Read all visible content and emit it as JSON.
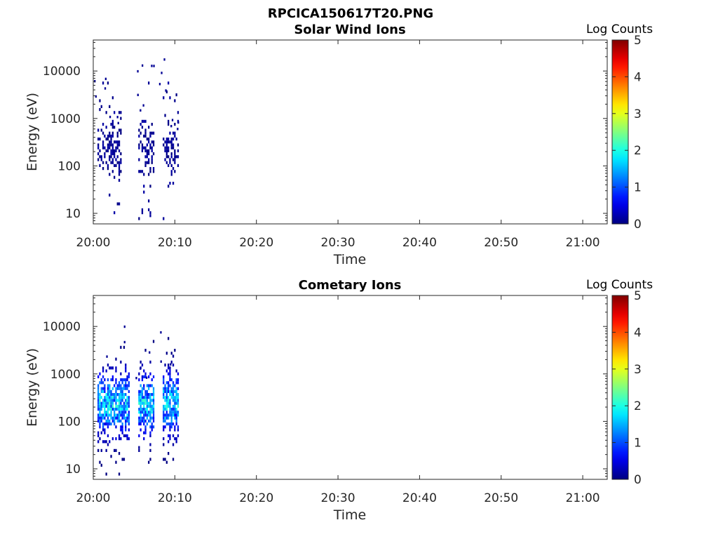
{
  "figure_title": "RPCICA150617T20.PNG",
  "chart_data": [
    {
      "type": "heatmap",
      "title": "Solar Wind Ions",
      "xlabel": "Time",
      "ylabel": "Energy (eV)",
      "yscale": "log",
      "ylim": [
        6,
        45000
      ],
      "xlim": [
        "20:00",
        "21:03"
      ],
      "xticks": [
        "20:00",
        "20:10",
        "20:20",
        "20:30",
        "20:40",
        "20:50",
        "21:00"
      ],
      "yticks": [
        "10",
        "100",
        "1000",
        "10000"
      ],
      "colorbar": {
        "label": "Log Counts",
        "range": [
          0,
          5
        ],
        "ticks": [
          "0",
          "1",
          "2",
          "3",
          "4",
          "5"
        ]
      },
      "data_time_ranges": [
        [
          "20:00",
          "20:03"
        ],
        [
          "20:05",
          "20:07"
        ],
        [
          "20:08",
          "20:10"
        ]
      ],
      "cell_value_range": [
        0,
        0.4
      ]
    },
    {
      "type": "heatmap",
      "title": "Cometary Ions",
      "xlabel": "Time",
      "ylabel": "Energy (eV)",
      "yscale": "log",
      "ylim": [
        6,
        45000
      ],
      "xlim": [
        "20:00",
        "21:03"
      ],
      "xticks": [
        "20:00",
        "20:10",
        "20:20",
        "20:30",
        "20:40",
        "20:50",
        "21:00"
      ],
      "yticks": [
        "10",
        "100",
        "1000",
        "10000"
      ],
      "colorbar": {
        "label": "Log Counts",
        "range": [
          0,
          5
        ],
        "ticks": [
          "0",
          "1",
          "2",
          "3",
          "4",
          "5"
        ]
      },
      "data_time_ranges": [
        [
          "20:00",
          "20:04"
        ],
        [
          "20:05",
          "20:07"
        ],
        [
          "20:08",
          "20:10"
        ]
      ],
      "cell_value_range": [
        0,
        2.2
      ]
    }
  ]
}
